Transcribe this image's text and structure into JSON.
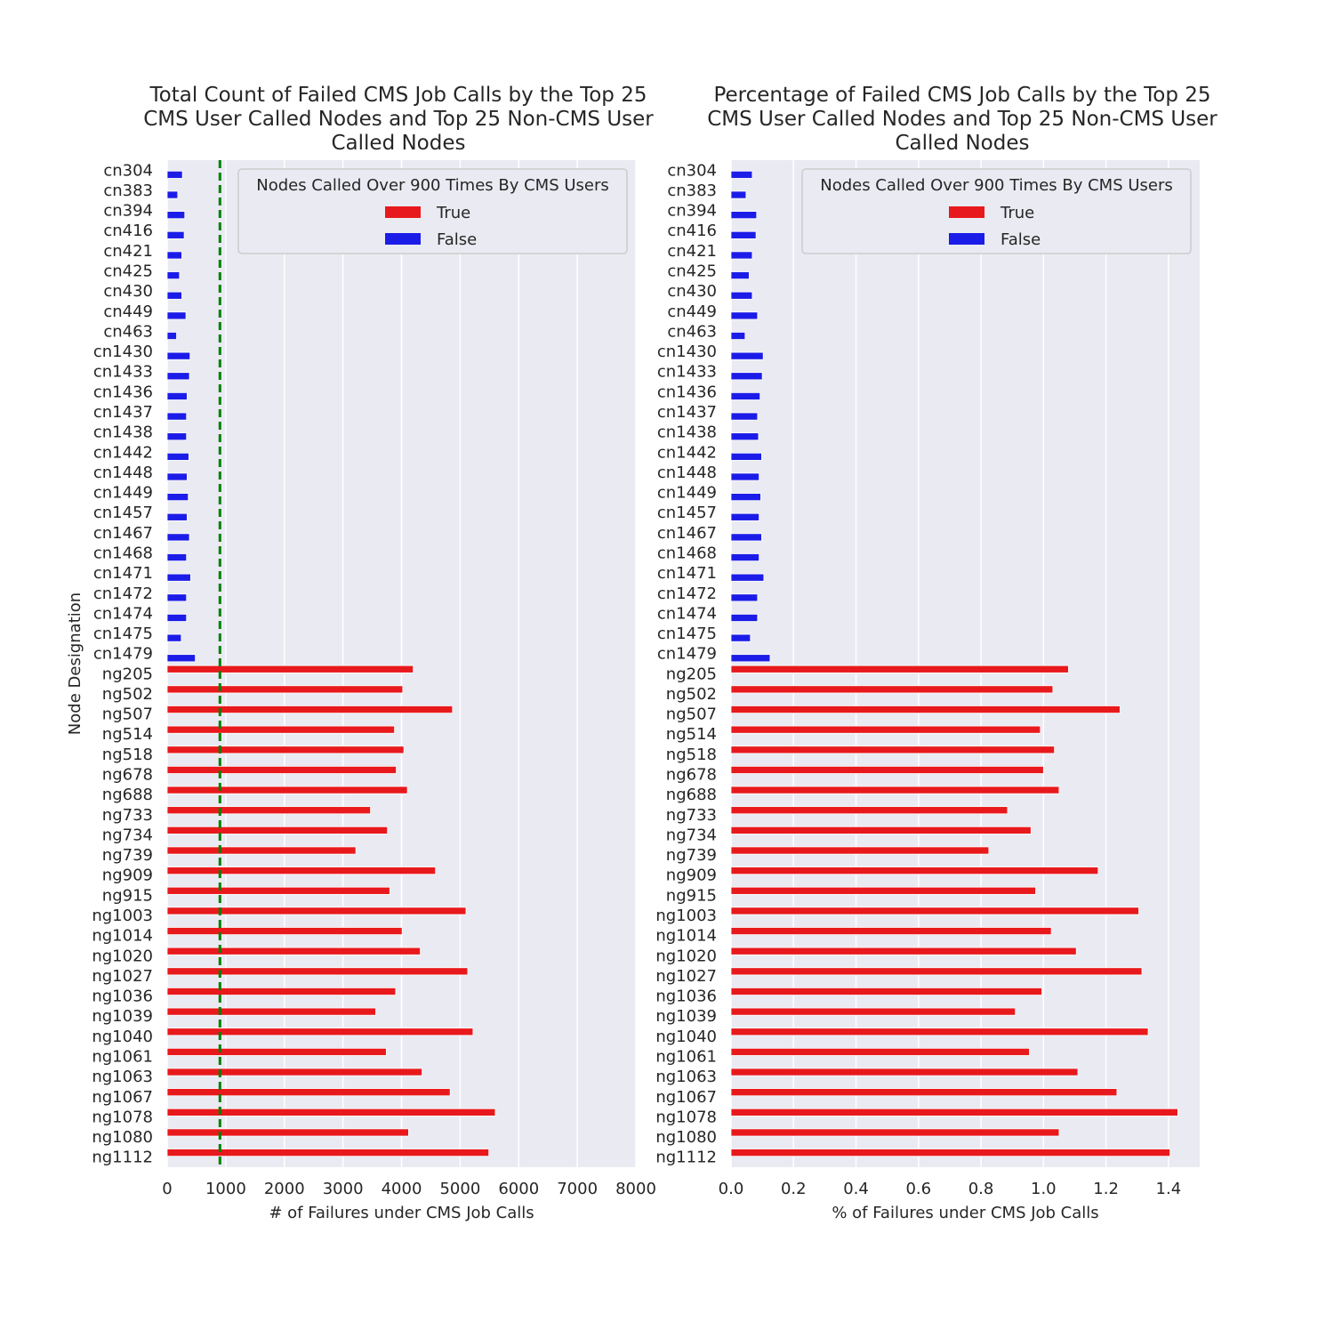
{
  "chart_data": [
    {
      "type": "bar",
      "orientation": "horizontal",
      "title": "Total Count of Failed CMS Job Calls by the Top 25 CMS User Called Nodes and Top 25 Non-CMS User Called Nodes",
      "title_lines": [
        "Total Count of Failed CMS Job Calls by the Top 25",
        "CMS User Called Nodes and Top 25 Non-CMS User",
        "Called Nodes"
      ],
      "xlabel": "# of Failures under CMS Job Calls",
      "ylabel": "Node Designation",
      "xlim": [
        0,
        8000
      ],
      "xticks": [
        "0",
        "1000",
        "2000",
        "3000",
        "4000",
        "5000",
        "6000",
        "7000",
        "8000"
      ],
      "reference_line": {
        "x": 900,
        "color": "#008000",
        "style": "dashed"
      },
      "grid": true,
      "legend": {
        "title": "Nodes Called Over 900 Times By CMS Users",
        "placement": "top-right",
        "entries": [
          "True",
          "False"
        ]
      },
      "categories": [
        "cn304",
        "cn383",
        "cn394",
        "cn416",
        "cn421",
        "cn425",
        "cn430",
        "cn449",
        "cn463",
        "cn1430",
        "cn1433",
        "cn1436",
        "cn1437",
        "cn1438",
        "cn1442",
        "cn1448",
        "cn1449",
        "cn1457",
        "cn1467",
        "cn1468",
        "cn1471",
        "cn1472",
        "cn1474",
        "cn1475",
        "cn1479",
        "ng205",
        "ng502",
        "ng507",
        "ng514",
        "ng518",
        "ng678",
        "ng688",
        "ng733",
        "ng734",
        "ng739",
        "ng909",
        "ng915",
        "ng1003",
        "ng1014",
        "ng1020",
        "ng1027",
        "ng1036",
        "ng1039",
        "ng1040",
        "ng1061",
        "ng1063",
        "ng1067",
        "ng1078",
        "ng1080",
        "ng1112"
      ],
      "series": [
        {
          "name": "True",
          "color": "#e8191c",
          "values": [
            null,
            null,
            null,
            null,
            null,
            null,
            null,
            null,
            null,
            null,
            null,
            null,
            null,
            null,
            null,
            null,
            null,
            null,
            null,
            null,
            null,
            null,
            null,
            null,
            null,
            4200,
            4020,
            4870,
            3880,
            4040,
            3910,
            4100,
            3470,
            3760,
            3220,
            4580,
            3800,
            5100,
            4010,
            4320,
            5130,
            3900,
            3560,
            5220,
            3740,
            4350,
            4830,
            5600,
            4120,
            5490
          ]
        },
        {
          "name": "False",
          "color": "#1c1ce8",
          "values": [
            260,
            180,
            300,
            290,
            250,
            210,
            250,
            320,
            160,
            390,
            380,
            340,
            330,
            330,
            370,
            340,
            360,
            340,
            380,
            330,
            400,
            330,
            330,
            240,
            480,
            null,
            null,
            null,
            null,
            null,
            null,
            null,
            null,
            null,
            null,
            null,
            null,
            null,
            null,
            null,
            null,
            null,
            null,
            null,
            null,
            null,
            null,
            null,
            null,
            null
          ]
        }
      ]
    },
    {
      "type": "bar",
      "orientation": "horizontal",
      "title": "Percentage of Failed CMS Job Calls by the Top 25 CMS User Called Nodes and Top 25 Non-CMS User Called Nodes",
      "title_lines": [
        "Percentage of Failed CMS Job Calls by the Top 25",
        "CMS User Called Nodes and Top 25 Non-CMS User",
        "Called Nodes"
      ],
      "xlabel": "% of Failures under CMS Job Calls",
      "ylabel": "",
      "xlim": [
        0,
        1.5
      ],
      "xticks": [
        "0.0",
        "0.2",
        "0.4",
        "0.6",
        "0.8",
        "1.0",
        "1.2",
        "1.4"
      ],
      "grid": true,
      "legend": {
        "title": "Nodes Called Over 900 Times By CMS Users",
        "placement": "top-right",
        "entries": [
          "True",
          "False"
        ]
      },
      "categories": [
        "cn304",
        "cn383",
        "cn394",
        "cn416",
        "cn421",
        "cn425",
        "cn430",
        "cn449",
        "cn463",
        "cn1430",
        "cn1433",
        "cn1436",
        "cn1437",
        "cn1438",
        "cn1442",
        "cn1448",
        "cn1449",
        "cn1457",
        "cn1467",
        "cn1468",
        "cn1471",
        "cn1472",
        "cn1474",
        "cn1475",
        "cn1479",
        "ng205",
        "ng502",
        "ng507",
        "ng514",
        "ng518",
        "ng678",
        "ng688",
        "ng733",
        "ng734",
        "ng739",
        "ng909",
        "ng915",
        "ng1003",
        "ng1014",
        "ng1020",
        "ng1027",
        "ng1036",
        "ng1039",
        "ng1040",
        "ng1061",
        "ng1063",
        "ng1067",
        "ng1078",
        "ng1080",
        "ng1112"
      ],
      "series": [
        {
          "name": "True",
          "color": "#e8191c",
          "values": [
            null,
            null,
            null,
            null,
            null,
            null,
            null,
            null,
            null,
            null,
            null,
            null,
            null,
            null,
            null,
            null,
            null,
            null,
            null,
            null,
            null,
            null,
            null,
            null,
            null,
            1.08,
            1.03,
            1.245,
            0.99,
            1.035,
            1.0,
            1.05,
            0.885,
            0.96,
            0.825,
            1.175,
            0.975,
            1.305,
            1.025,
            1.105,
            1.315,
            0.995,
            0.91,
            1.335,
            0.955,
            1.11,
            1.235,
            1.43,
            1.05,
            1.405
          ]
        },
        {
          "name": "False",
          "color": "#1c1ce8",
          "values": [
            0.068,
            0.048,
            0.082,
            0.08,
            0.068,
            0.058,
            0.068,
            0.085,
            0.045,
            0.103,
            0.1,
            0.093,
            0.085,
            0.088,
            0.098,
            0.09,
            0.095,
            0.09,
            0.098,
            0.09,
            0.105,
            0.085,
            0.085,
            0.062,
            0.125,
            null,
            null,
            null,
            null,
            null,
            null,
            null,
            null,
            null,
            null,
            null,
            null,
            null,
            null,
            null,
            null,
            null,
            null,
            null,
            null,
            null,
            null,
            null,
            null,
            null
          ]
        }
      ]
    }
  ]
}
